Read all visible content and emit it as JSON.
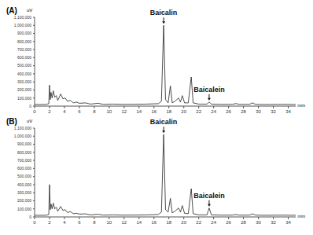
{
  "chart_data": [
    {
      "type": "line",
      "title": "(A)",
      "xlabel": "min",
      "ylabel": "uV",
      "color": "#222222",
      "grid": false,
      "xlim": [
        0,
        35
      ],
      "xticks": [
        0,
        2,
        4,
        6,
        8,
        10,
        12,
        14,
        16,
        18,
        20,
        22,
        24,
        26,
        28,
        30,
        32,
        34
      ],
      "ylim": [
        0,
        1100000
      ],
      "yticks": [
        0,
        {
          "value": 100000,
          "label": "100,000"
        },
        {
          "value": 200000,
          "label": "200,000"
        },
        {
          "value": 300000,
          "label": "300,000"
        },
        {
          "value": 400000,
          "label": "400,000"
        },
        {
          "value": 500000,
          "label": "500,000"
        },
        {
          "value": 600000,
          "label": "600,000"
        },
        {
          "value": 700000,
          "label": "700,000"
        },
        {
          "value": 800000,
          "label": "800,000"
        },
        {
          "value": 900000,
          "label": "900,000"
        },
        {
          "value": 1000000,
          "label": "1,000,000"
        },
        {
          "value": 1100000,
          "label": "1,100,000"
        }
      ],
      "x": [
        0,
        1.5,
        1.9,
        2.0,
        2.1,
        2.2,
        2.35,
        2.5,
        2.7,
        2.9,
        3.1,
        3.5,
        3.8,
        4.1,
        4.4,
        4.8,
        5.2,
        5.6,
        6.0,
        6.8,
        7.5,
        8.5,
        9.2,
        10.5,
        12,
        13.5,
        15,
        16.6,
        17.0,
        17.3,
        17.55,
        17.9,
        18.2,
        18.45,
        18.8,
        19.3,
        19.55,
        19.8,
        20.1,
        20.6,
        21.0,
        21.25,
        22,
        23.1,
        23.4,
        23.7,
        25,
        26.5,
        27,
        27.4,
        28.8,
        29.2,
        29.6,
        31,
        33,
        35
      ],
      "values": [
        20000,
        20000,
        30000,
        260000,
        80000,
        170000,
        100000,
        190000,
        110000,
        130000,
        70000,
        150000,
        90000,
        100000,
        60000,
        70000,
        40000,
        50000,
        35000,
        40000,
        25000,
        35000,
        22000,
        25000,
        22000,
        23000,
        25000,
        30000,
        60000,
        1000000,
        80000,
        40000,
        250000,
        40000,
        60000,
        100000,
        50000,
        130000,
        40000,
        40000,
        360000,
        40000,
        25000,
        25000,
        50000,
        25000,
        22000,
        22000,
        32000,
        22000,
        22000,
        40000,
        22000,
        20000,
        22000,
        20000
      ],
      "annotations": [
        {
          "text": "Baicalin",
          "x": 17.3,
          "y": 1000000
        },
        {
          "text": "Baicalein",
          "x": 23.4,
          "y": 50000
        }
      ]
    },
    {
      "type": "line",
      "title": "(B)",
      "xlabel": "min",
      "ylabel": "uV",
      "color": "#222222",
      "grid": false,
      "xlim": [
        0,
        35
      ],
      "xticks": [
        0,
        2,
        4,
        6,
        8,
        10,
        12,
        14,
        16,
        18,
        20,
        22,
        24,
        26,
        28,
        30,
        32,
        34
      ],
      "ylim": [
        0,
        1100000
      ],
      "yticks": [
        0,
        {
          "value": 100000,
          "label": "100,000"
        },
        {
          "value": 200000,
          "label": "200,000"
        },
        {
          "value": 300000,
          "label": "300,000"
        },
        {
          "value": 400000,
          "label": "400,000"
        },
        {
          "value": 500000,
          "label": "500,000"
        },
        {
          "value": 600000,
          "label": "600,000"
        },
        {
          "value": 700000,
          "label": "700,000"
        },
        {
          "value": 800000,
          "label": "800,000"
        },
        {
          "value": 900000,
          "label": "900,000"
        },
        {
          "value": 1000000,
          "label": "1,000,000"
        },
        {
          "value": 1100000,
          "label": "1,100,000"
        }
      ],
      "x": [
        0,
        1.5,
        1.9,
        2.0,
        2.1,
        2.2,
        2.35,
        2.5,
        2.7,
        2.9,
        3.1,
        3.5,
        3.8,
        4.1,
        4.4,
        4.8,
        5.2,
        5.6,
        6.0,
        6.8,
        7.5,
        8.5,
        9.2,
        10.5,
        12,
        13.5,
        15,
        16.6,
        17.0,
        17.3,
        17.55,
        17.9,
        18.2,
        18.45,
        18.8,
        19.3,
        19.55,
        19.8,
        20.1,
        20.6,
        21.0,
        21.25,
        22,
        23.1,
        23.4,
        23.7,
        25,
        26.5,
        27,
        27.4,
        28.8,
        29.2,
        29.6,
        31,
        33,
        35
      ],
      "values": [
        20000,
        20000,
        30000,
        400000,
        90000,
        160000,
        100000,
        170000,
        100000,
        120000,
        70000,
        130000,
        80000,
        90000,
        55000,
        65000,
        40000,
        45000,
        35000,
        38000,
        25000,
        33000,
        22000,
        25000,
        22000,
        23000,
        25000,
        30000,
        60000,
        1020000,
        90000,
        60000,
        230000,
        50000,
        70000,
        110000,
        60000,
        140000,
        45000,
        40000,
        350000,
        40000,
        25000,
        25000,
        110000,
        25000,
        22000,
        22000,
        30000,
        22000,
        22000,
        38000,
        22000,
        20000,
        22000,
        20000
      ],
      "annotations": [
        {
          "text": "Baicalin",
          "x": 17.3,
          "y": 1020000
        },
        {
          "text": "Baicalein",
          "x": 23.4,
          "y": 110000
        }
      ]
    }
  ]
}
